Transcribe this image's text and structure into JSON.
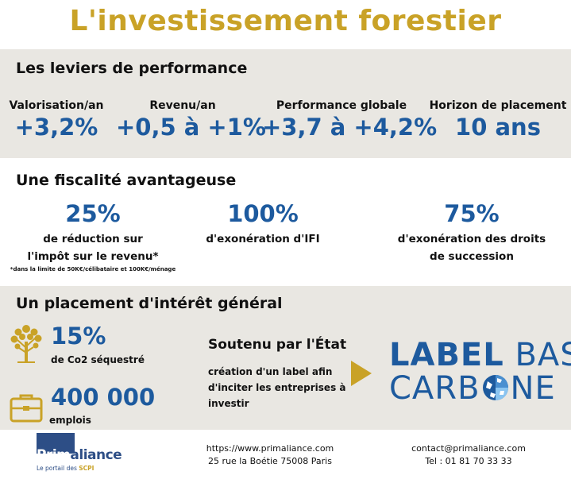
{
  "title": "L'investissement forestier",
  "performance": {
    "heading": "Les leviers de performance",
    "items": [
      {
        "label": "Valorisation/an",
        "value": "+3,2%"
      },
      {
        "label": "Revenu/an",
        "value": "+0,5 à +1%"
      },
      {
        "label": "Performance globale",
        "value": "+3,7 à +4,2%"
      },
      {
        "label": "Horizon de placement",
        "value": "10 ans"
      }
    ]
  },
  "fiscalite": {
    "heading": "Une fiscalité avantageuse",
    "items": [
      {
        "value": "25%",
        "line1": "de réduction sur",
        "line2": "l'impôt sur le revenu*",
        "note": "*dans la limite de 50K€/célibataire et 100K€/ménage"
      },
      {
        "value": "100%",
        "line1": "d'exonération d'IFI"
      },
      {
        "value": "75%",
        "line1": "d'exonération des droits",
        "line2": "de succession"
      }
    ]
  },
  "interet": {
    "heading": "Un placement d'intérêt général",
    "co2_value": "15%",
    "co2_label": "de Co2 séquestré",
    "jobs_value": "400 000",
    "jobs_label": "emplois",
    "support_title": "Soutenu par l'État",
    "support_lines": [
      "création d'un label afin",
      "d'inciter les entreprises à",
      "investir"
    ],
    "label_logo": {
      "word1_bold": "LABEL",
      "word1_light": "BAS",
      "word2_a": "CARB",
      "word2_b": "NE"
    },
    "icons": [
      "tree-icon",
      "briefcase-icon",
      "arrow-right-icon",
      "globe-icon"
    ]
  },
  "footer": {
    "website": "https://www.primaliance.com",
    "address": "25 rue la Boétie 75008 Paris",
    "email": "contact@primaliance.com",
    "phone": "Tel : 01 81 70 33 33",
    "logo_prefix": "Prim",
    "logo_suffix": "aliance",
    "logo_tagline": "Le portail des",
    "logo_tagline_bold": "SCPI"
  },
  "colors": {
    "gold": "#c9a227",
    "blue": "#1d5a9e",
    "gray_band": "#e9e7e2",
    "logo_blue": "#2d4e86"
  }
}
